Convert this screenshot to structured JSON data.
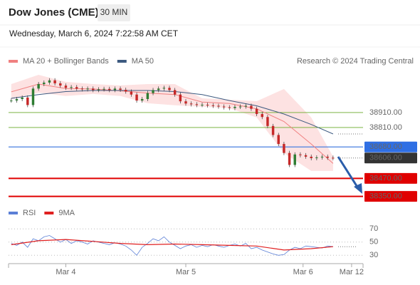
{
  "chart_data": {
    "type": "candlestick",
    "title": "Dow Jones (CME)",
    "timeframe": "30 MIN",
    "subtitle": "Wednesday, March 6, 2024 7:22:58 AM CET",
    "source": "Research © 2024 Trading Central",
    "xlim": [
      -0.5,
      64.5
    ],
    "xticks": [
      {
        "value": 10,
        "label": "Mar 4"
      },
      {
        "value": 32,
        "label": "Mar 5"
      },
      {
        "value": 53.5,
        "label": "Mar 6"
      },
      {
        "value": 62.4,
        "label": "Mar 12"
      }
    ],
    "ylim": [
      38310,
      39200
    ],
    "price": {
      "up_color": "#2e7d32",
      "down_color": "#c62828",
      "x": [
        0,
        1,
        2,
        3,
        4,
        5,
        6,
        7,
        8,
        9,
        10,
        11,
        12,
        13,
        14,
        15,
        16,
        17,
        18,
        19,
        20,
        21,
        22,
        23,
        24,
        25,
        26,
        27,
        28,
        29,
        30,
        31,
        32,
        33,
        34,
        35,
        36,
        37,
        38,
        39,
        40,
        41,
        42,
        43,
        44,
        45,
        46,
        47,
        48,
        49,
        50,
        51,
        52,
        53,
        54,
        55,
        56,
        57,
        58,
        59
      ],
      "values": [
        38990,
        39000,
        39010,
        38960,
        39070,
        39100,
        39110,
        39125,
        39105,
        39090,
        39075,
        39080,
        39070,
        39065,
        39070,
        39060,
        39065,
        39068,
        39060,
        39070,
        39062,
        39050,
        39030,
        38990,
        39000,
        39040,
        39060,
        39070,
        39075,
        39060,
        39030,
        38985,
        38970,
        38965,
        38960,
        38962,
        38958,
        38955,
        38950,
        38945,
        38940,
        38948,
        38950,
        38955,
        38935,
        38900,
        38880,
        38820,
        38760,
        38700,
        38640,
        38560,
        38630,
        38625,
        38615,
        38605,
        38610,
        38615,
        38608,
        38606
      ]
    },
    "series": [
      {
        "name": "MA 20 + Bollinger Bands",
        "color": "#f08080",
        "band_color": "#fde2e2",
        "x": [
          0,
          5,
          10,
          15,
          20,
          25,
          30,
          35,
          40,
          45,
          50,
          55,
          59
        ],
        "values": [
          39048,
          39100,
          39070,
          39067,
          39055,
          39040,
          39030,
          38980,
          38970,
          38935,
          38850,
          38700,
          38570
        ],
        "upper": [
          39100,
          39162,
          39115,
          39100,
          39091,
          39100,
          39100,
          39005,
          38996,
          38986,
          39067,
          38877,
          38615
        ],
        "lower": [
          38996,
          39043,
          39020,
          39034,
          39020,
          38972,
          38958,
          38948,
          38939,
          38877,
          38639,
          38520,
          38520
        ]
      },
      {
        "name": "MA 50",
        "color": "#3d5a80",
        "x": [
          0,
          5,
          10,
          15,
          20,
          25,
          30,
          35,
          40,
          45,
          50,
          55,
          59
        ],
        "values": [
          39005,
          39030,
          39050,
          39057,
          39057,
          39057,
          39050,
          39030,
          38990,
          38955,
          38900,
          38830,
          38767
        ]
      }
    ],
    "levels": [
      {
        "value": 38910,
        "label": "38910.00",
        "color": "#6aaa2a"
      },
      {
        "value": 38810,
        "label": "38810.00",
        "color": "#6aaa2a"
      },
      {
        "value": 38680,
        "label": "38680.00",
        "color": "#4a7fe0",
        "label_bg": "#2f6fe4"
      },
      {
        "value": 38606,
        "label": "38606.00",
        "color": "#777777",
        "label_bg": "#333333",
        "style": "dotted"
      },
      {
        "value": 38470,
        "label": "38470.00",
        "color": "#e00000",
        "label_bg": "#e00000"
      },
      {
        "value": 38350,
        "label": "38350.00",
        "color": "#e00000",
        "label_bg": "#e00000"
      }
    ],
    "rsi": {
      "ylim": [
        20,
        80
      ],
      "yticks": [
        70,
        50,
        30
      ],
      "series": [
        {
          "name": "RSI",
          "color": "#5b7fd6",
          "values": [
            48,
            45,
            50,
            42,
            55,
            52,
            58,
            60,
            55,
            50,
            54,
            48,
            52,
            50,
            47,
            52,
            50,
            48,
            46,
            49,
            47,
            44,
            38,
            30,
            42,
            48,
            55,
            52,
            58,
            50,
            45,
            40,
            44,
            46,
            42,
            45,
            43,
            46,
            44,
            42,
            45,
            47,
            44,
            48,
            40,
            42,
            38,
            35,
            32,
            30,
            31,
            38,
            42,
            40,
            44,
            43,
            42,
            41,
            44,
            43
          ]
        },
        {
          "name": "9MA",
          "color": "#e02020",
          "x": [
            0,
            5,
            10,
            15,
            20,
            25,
            30,
            35,
            40,
            45,
            50,
            55,
            59
          ],
          "values": [
            46,
            52,
            54,
            51,
            48,
            46,
            47,
            46,
            45,
            44,
            38,
            40,
            43
          ]
        }
      ]
    }
  }
}
